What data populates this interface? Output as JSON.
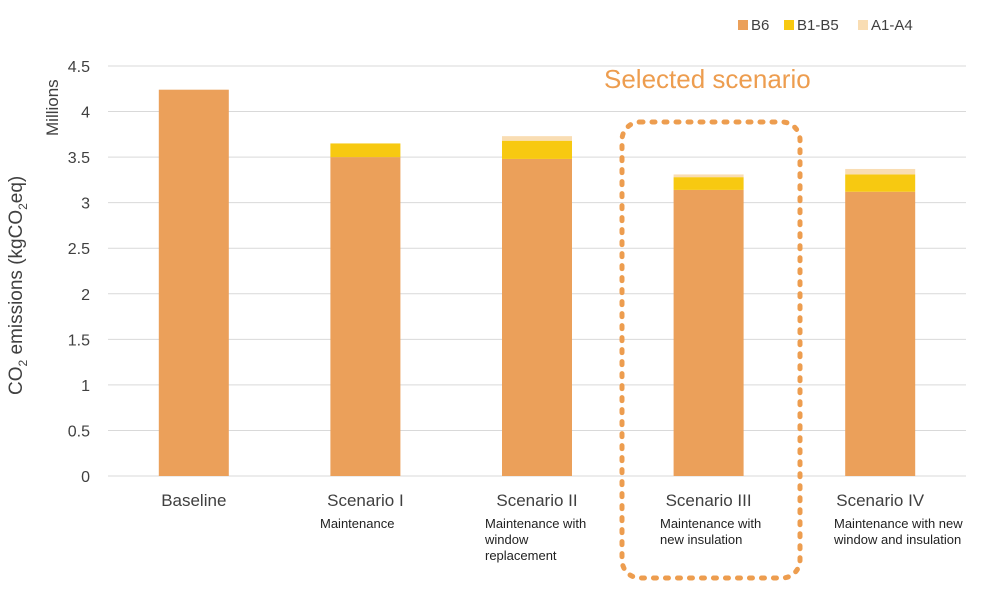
{
  "colors": {
    "B6": "#EBA05A",
    "B1-B5": "#F7C911",
    "A1-A4": "#F9DDB3",
    "grid": "#D9D9D9",
    "highlight": "#ED9D4F"
  },
  "chart_data": {
    "type": "bar",
    "stacked": true,
    "title": "",
    "units_label": "Millions",
    "ylabel_parts": [
      "CO",
      "2",
      " emissions (kgCO",
      "2",
      "eq)"
    ],
    "ylim": [
      0,
      4.5
    ],
    "yticks": [
      "0",
      "0.5",
      "1",
      "1.5",
      "2",
      "2.5",
      "3",
      "3.5",
      "4",
      "4.5"
    ],
    "ytick_values": [
      0,
      0.5,
      1,
      1.5,
      2,
      2.5,
      3,
      3.5,
      4,
      4.5
    ],
    "grid": true,
    "legend_position": "top-right",
    "categories": [
      "Baseline",
      "Scenario I",
      "Scenario II",
      "Scenario III",
      "Scenario IV"
    ],
    "descriptions": [
      "",
      "Maintenance",
      "Maintenance with\nwindow\nreplacement",
      "Maintenance with\nnew insulation",
      "Maintenance with new\nwindow and insulation"
    ],
    "series": [
      {
        "name": "B6",
        "color_key": "B6",
        "values": [
          4.24,
          3.5,
          3.48,
          3.14,
          3.12
        ]
      },
      {
        "name": "B1-B5",
        "color_key": "B1-B5",
        "values": [
          0,
          0.15,
          0.2,
          0.14,
          0.19
        ]
      },
      {
        "name": "A1-A4",
        "color_key": "A1-A4",
        "values": [
          0,
          0,
          0.05,
          0.03,
          0.06
        ]
      }
    ],
    "annotation": {
      "text": "Selected scenario",
      "target_category": "Scenario III"
    }
  }
}
